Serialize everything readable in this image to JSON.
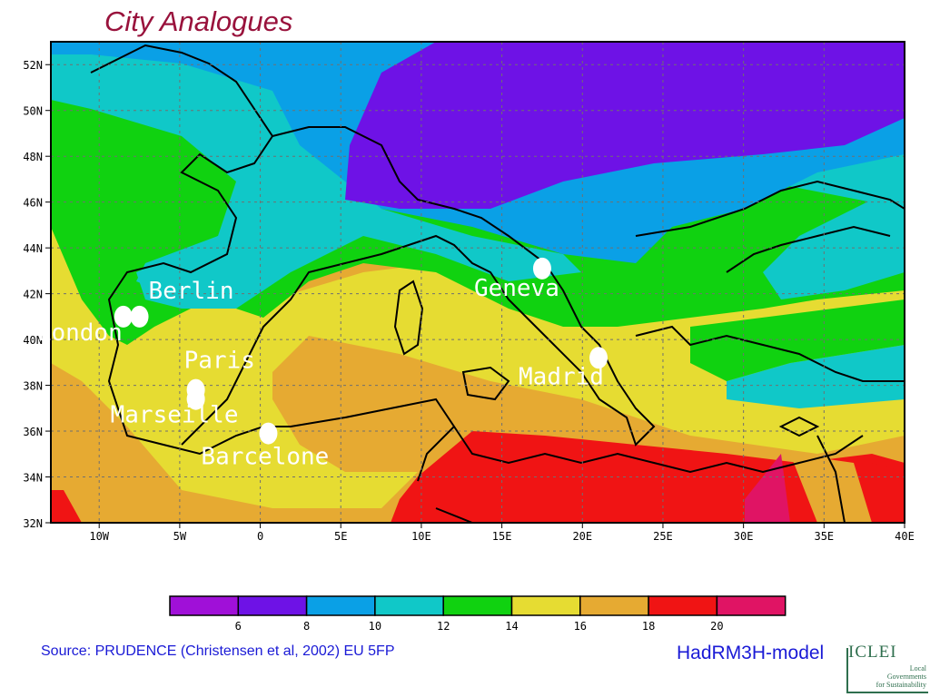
{
  "title": "City Analogues",
  "lat_labels": [
    "52N",
    "50N",
    "48N",
    "46N",
    "44N",
    "42N",
    "40N",
    "38N",
    "36N",
    "34N",
    "32N"
  ],
  "lon_labels": [
    "10W",
    "5W",
    "0",
    "5E",
    "10E",
    "15E",
    "20E",
    "25E",
    "30E",
    "35E",
    "40E"
  ],
  "cities": [
    {
      "name": "Berlin",
      "lon": -7.5,
      "lat": 41.0
    },
    {
      "name": "London",
      "lon": -8.5,
      "lat": 41.0
    },
    {
      "name": "Paris",
      "lon": -4.0,
      "lat": 37.8
    },
    {
      "name": "Marseille",
      "lon": -4.0,
      "lat": 37.4
    },
    {
      "name": "Barcelone",
      "lon": 0.5,
      "lat": 35.9
    },
    {
      "name": "Geneva",
      "lon": 17.5,
      "lat": 43.1
    },
    {
      "name": "Madrid",
      "lon": 21.0,
      "lat": 39.2
    }
  ],
  "legend": {
    "ticks": [
      "6",
      "8",
      "10",
      "12",
      "14",
      "16",
      "18",
      "20"
    ],
    "colors": [
      "#a010d8",
      "#6e12e6",
      "#0aa0e6",
      "#10c8c8",
      "#10d210",
      "#e6dc32",
      "#e6aa32",
      "#f01414",
      "#e01464"
    ]
  },
  "source": "Source: PRUDENCE  (Christensen et al, 2002) EU 5FP",
  "model": "HadRM3H-model",
  "logo": {
    "word": "ICLEI",
    "tagline": [
      "Local",
      "Governments",
      "for Sustainability"
    ]
  }
}
